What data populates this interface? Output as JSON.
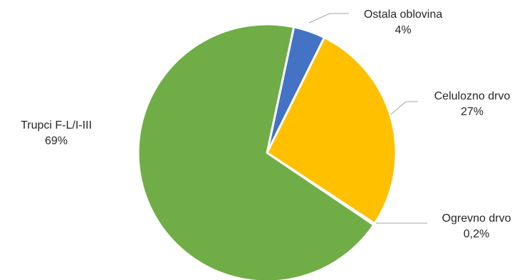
{
  "chart_data": {
    "type": "pie",
    "title": "",
    "slices": [
      {
        "name": "Ostala oblovina",
        "value": 4,
        "label": "4%",
        "color": "#4472C4"
      },
      {
        "name": "Celulozno drvo",
        "value": 27,
        "label": "27%",
        "color": "#FFC000"
      },
      {
        "name": "Ogrevno drvo",
        "value": 0.2,
        "label": "0,2%",
        "color": "#A5A5A5"
      },
      {
        "name": "Trupci F-L/I-III",
        "value": 69,
        "label": "69%",
        "color": "#70AD47"
      }
    ],
    "start_angle_deg": 12,
    "direction": "clockwise",
    "legend": "none",
    "labels": "outside-with-leader-lines"
  }
}
